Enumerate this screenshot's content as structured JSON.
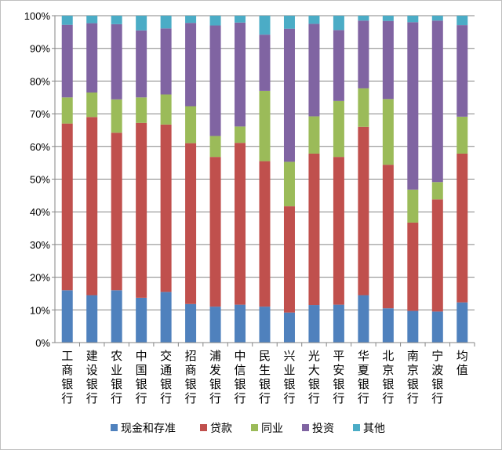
{
  "chart_data": {
    "type": "bar",
    "stacked": "percent",
    "categories": [
      "工商银行",
      "建设银行",
      "农业银行",
      "中国银行",
      "交通银行",
      "招商银行",
      "浦发银行",
      "中信银行",
      "民生银行",
      "兴业银行",
      "光大银行",
      "平安银行",
      "华夏银行",
      "北京银行",
      "南京银行",
      "宁波银行",
      "均值"
    ],
    "series": [
      {
        "name": "现金和存准",
        "color": "#4f81bd",
        "values": [
          16,
          14.5,
          16,
          13.7,
          15.5,
          11.8,
          11,
          11.6,
          11,
          9.2,
          11.5,
          11.6,
          14.5,
          10.5,
          9.7,
          9.5,
          12.3
        ]
      },
      {
        "name": "贷款",
        "color": "#c0504d",
        "values": [
          51,
          54.5,
          48.2,
          53.5,
          51.2,
          49.2,
          45.8,
          49.5,
          44.5,
          32.5,
          46.3,
          45.2,
          51.5,
          43.9,
          27,
          34.3,
          45.5
        ]
      },
      {
        "name": "同业",
        "color": "#9bbb59",
        "values": [
          8,
          7.5,
          10.2,
          7.8,
          9.2,
          11.3,
          6.4,
          5,
          21.5,
          13.6,
          11.4,
          17.1,
          11.8,
          20.1,
          10.1,
          5.3,
          11.3
        ]
      },
      {
        "name": "投资",
        "color": "#8064a2",
        "values": [
          22.2,
          21.2,
          23,
          20.5,
          20.2,
          25.5,
          33.8,
          31.8,
          17.2,
          40.7,
          28.3,
          21.7,
          20.7,
          23.9,
          51.2,
          49.4,
          28
        ]
      },
      {
        "name": "其他",
        "color": "#4bacc6",
        "values": [
          2.8,
          2.3,
          2.6,
          4.5,
          3.9,
          2.2,
          3,
          2.1,
          5.8,
          4,
          2.5,
          4.4,
          1.5,
          1.6,
          2,
          1.5,
          2.9
        ]
      }
    ],
    "y_ticks": [
      "0%",
      "10%",
      "20%",
      "30%",
      "40%",
      "50%",
      "60%",
      "70%",
      "80%",
      "90%",
      "100%"
    ],
    "ylim": [
      0,
      100
    ],
    "grid": true,
    "legend_position": "bottom"
  }
}
